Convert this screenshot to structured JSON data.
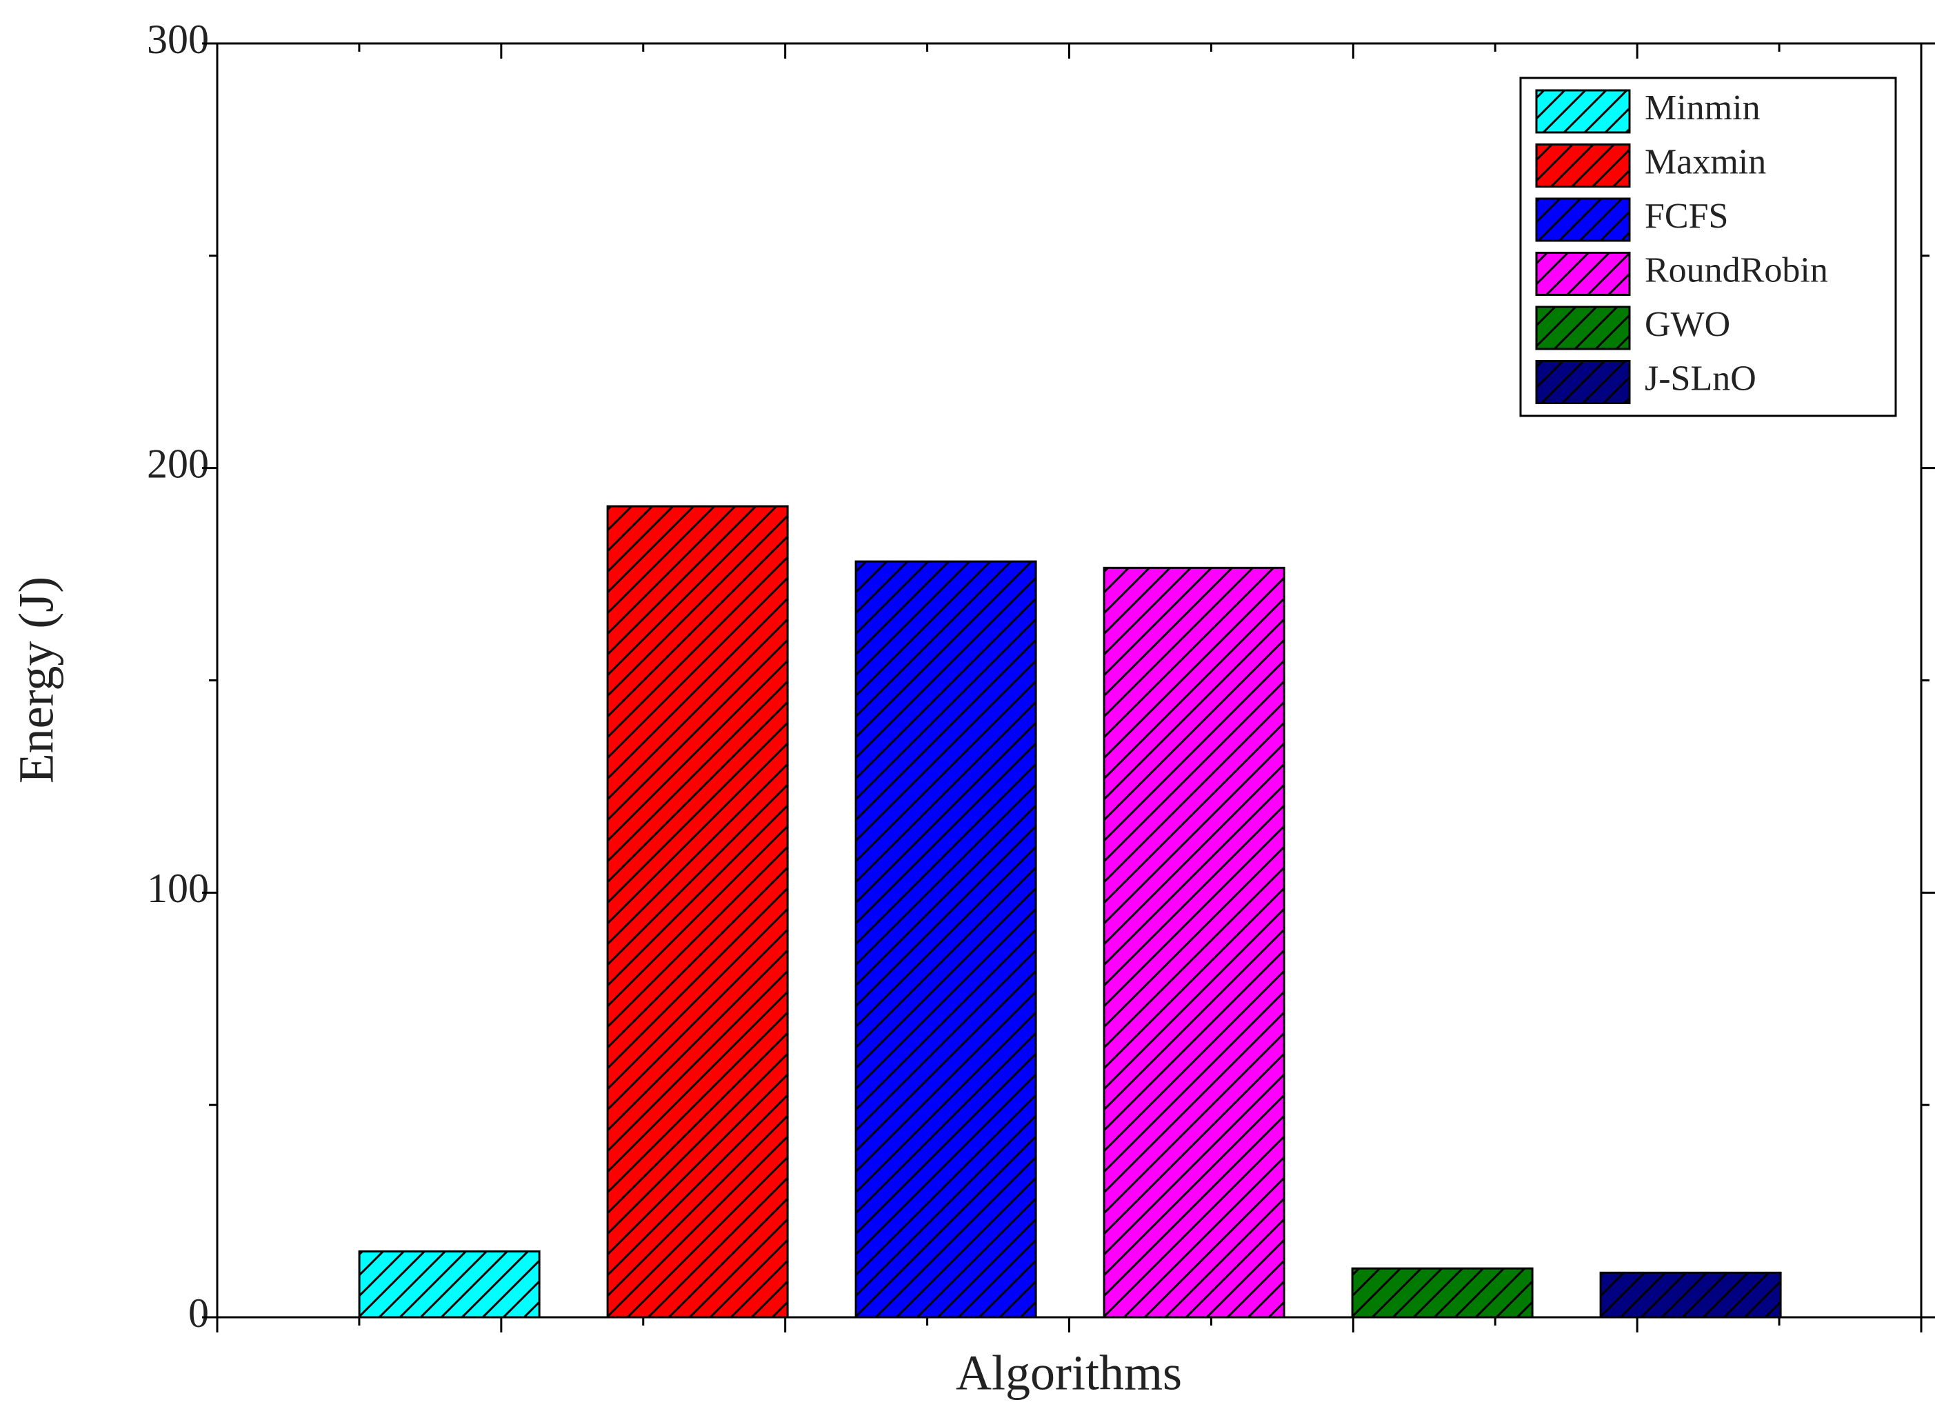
{
  "chart_data": {
    "type": "bar",
    "y_label": "Energy (J)",
    "x_label": "Algorithms",
    "series": [
      {
        "name": "Minmin",
        "color": "#00ffff",
        "values": [
          15.5
        ]
      },
      {
        "name": "Maxmin",
        "color": "#ff0000",
        "values": [
          191
        ]
      },
      {
        "name": "FCFS",
        "color": "#0000ff",
        "values": [
          178
        ]
      },
      {
        "name": "RoundRobin",
        "color": "#ff00ff",
        "values": [
          176.5
        ]
      },
      {
        "name": "GWO",
        "color": "#007a00",
        "values": [
          11.5
        ]
      },
      {
        "name": "J-SLnO",
        "color": "#000080",
        "values": [
          10.5
        ]
      }
    ],
    "ylim": [
      0,
      300
    ],
    "yticks": [
      0,
      100,
      200,
      300
    ],
    "hatch": true,
    "legend": "upper right"
  }
}
